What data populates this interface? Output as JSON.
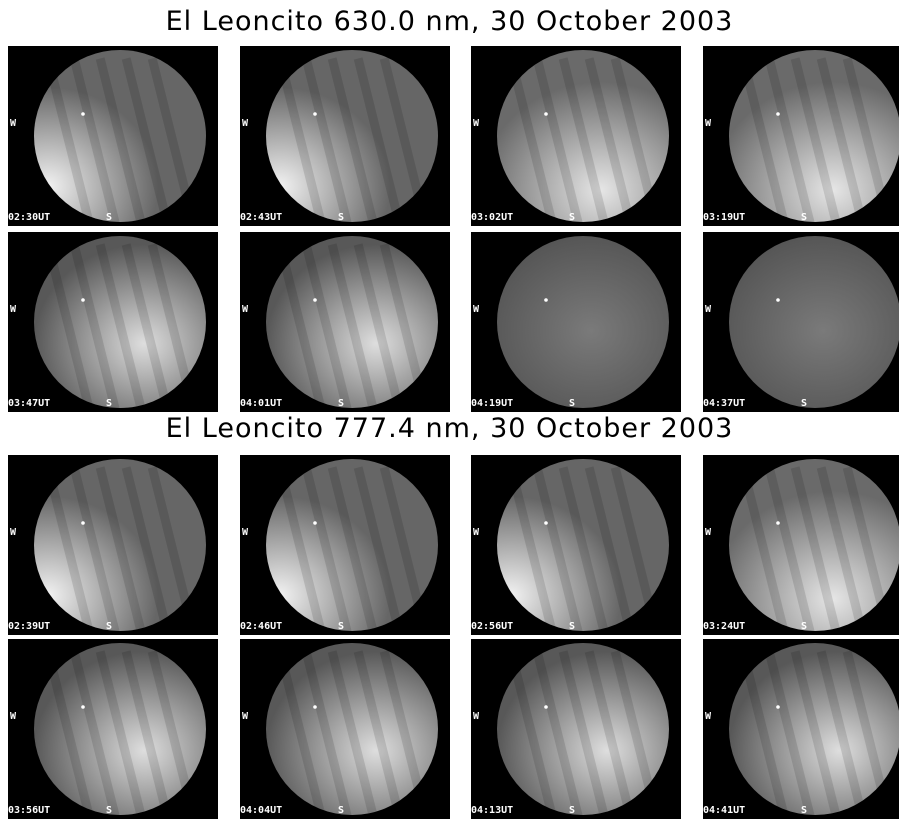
{
  "sections": [
    {
      "title": "El Leoncito 630.0 nm, 30 October 2003",
      "rows": [
        [
          {
            "time": "02:30UT",
            "w": "W",
            "s": "S",
            "glow": "left"
          },
          {
            "time": "02:43UT",
            "w": "W",
            "s": "S",
            "glow": "left"
          },
          {
            "time": "03:02UT",
            "w": "W",
            "s": "S",
            "glow": "bottom"
          },
          {
            "time": "03:19UT",
            "w": "W",
            "s": "S",
            "glow": "bottom"
          }
        ],
        [
          {
            "time": "03:47UT",
            "w": "W",
            "s": "S",
            "glow": "center"
          },
          {
            "time": "04:01UT",
            "w": "W",
            "s": "S",
            "glow": "center"
          },
          {
            "time": "04:19UT",
            "w": "W",
            "s": "S",
            "glow": "dim"
          },
          {
            "time": "04:37UT",
            "w": "W",
            "s": "S",
            "glow": "dim"
          }
        ]
      ]
    },
    {
      "title": "El Leoncito 777.4 nm, 30 October 2003",
      "rows": [
        [
          {
            "time": "02:39UT",
            "w": "W",
            "s": "S",
            "glow": "left"
          },
          {
            "time": "02:46UT",
            "w": "W",
            "s": "S",
            "glow": "left"
          },
          {
            "time": "02:56UT",
            "w": "W",
            "s": "S",
            "glow": "left"
          },
          {
            "time": "03:24UT",
            "w": "W",
            "s": "S",
            "glow": "bottom"
          }
        ],
        [
          {
            "time": "03:56UT",
            "w": "W",
            "s": "S",
            "glow": "center"
          },
          {
            "time": "04:04UT",
            "w": "W",
            "s": "S",
            "glow": "center"
          },
          {
            "time": "04:13UT",
            "w": "W",
            "s": "S",
            "glow": "center"
          },
          {
            "time": "04:41UT",
            "w": "W",
            "s": "S",
            "glow": "center"
          }
        ]
      ]
    }
  ]
}
